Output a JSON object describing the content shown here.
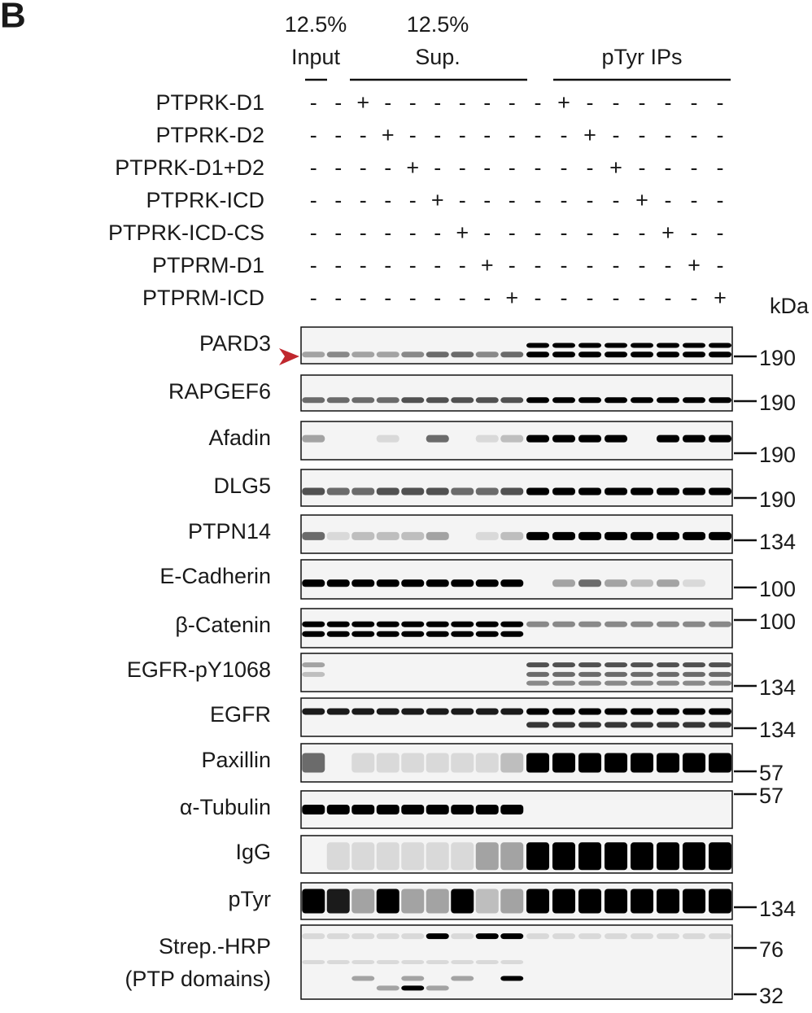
{
  "panel_label": "B",
  "column_groups": [
    {
      "lines": [
        "12.5%",
        "Input"
      ]
    },
    {
      "lines": [
        "12.5%",
        "Sup."
      ]
    },
    {
      "lines": [
        "pTyr IPs"
      ]
    }
  ],
  "conditions": [
    {
      "name": "PTPRK-D1",
      "signs": [
        "-",
        "-",
        "+",
        "-",
        "-",
        "-",
        "-",
        "-",
        "-",
        "-",
        "+",
        "-",
        "-",
        "-",
        "-",
        "-",
        "-"
      ]
    },
    {
      "name": "PTPRK-D2",
      "signs": [
        "-",
        "-",
        "-",
        "+",
        "-",
        "-",
        "-",
        "-",
        "-",
        "-",
        "-",
        "+",
        "-",
        "-",
        "-",
        "-",
        "-"
      ]
    },
    {
      "name": "PTPRK-D1+D2",
      "signs": [
        "-",
        "-",
        "-",
        "-",
        "+",
        "-",
        "-",
        "-",
        "-",
        "-",
        "-",
        "-",
        "+",
        "-",
        "-",
        "-",
        "-"
      ]
    },
    {
      "name": "PTPRK-ICD",
      "signs": [
        "-",
        "-",
        "-",
        "-",
        "-",
        "+",
        "-",
        "-",
        "-",
        "-",
        "-",
        "-",
        "-",
        "+",
        "-",
        "-",
        "-"
      ]
    },
    {
      "name": "PTPRK-ICD-CS",
      "signs": [
        "-",
        "-",
        "-",
        "-",
        "-",
        "-",
        "+",
        "-",
        "-",
        "-",
        "-",
        "-",
        "-",
        "-",
        "+",
        "-",
        "-"
      ]
    },
    {
      "name": "PTPRM-D1",
      "signs": [
        "-",
        "-",
        "-",
        "-",
        "-",
        "-",
        "-",
        "+",
        "-",
        "-",
        "-",
        "-",
        "-",
        "-",
        "-",
        "+",
        "-"
      ]
    },
    {
      "name": "PTPRM-ICD",
      "signs": [
        "-",
        "-",
        "-",
        "-",
        "-",
        "-",
        "-",
        "-",
        "+",
        "-",
        "-",
        "-",
        "-",
        "-",
        "-",
        "-",
        "+"
      ]
    }
  ],
  "unit_label": "kDa",
  "blots": [
    {
      "lines": [
        "PARD3"
      ],
      "markers": [
        190
      ]
    },
    {
      "lines": [
        "RAPGEF6"
      ],
      "markers": [
        190
      ]
    },
    {
      "lines": [
        "Afadin"
      ],
      "markers": [
        190
      ]
    },
    {
      "lines": [
        "DLG5"
      ],
      "markers": [
        190
      ]
    },
    {
      "lines": [
        "PTPN14"
      ],
      "markers": [
        134
      ]
    },
    {
      "lines": [
        "E-Cadherin"
      ],
      "markers": [
        100
      ]
    },
    {
      "lines": [
        "β-Catenin"
      ],
      "markers": [
        100
      ]
    },
    {
      "lines": [
        "EGFR-pY1068"
      ],
      "markers": [
        134
      ]
    },
    {
      "lines": [
        "EGFR"
      ],
      "markers": [
        134
      ]
    },
    {
      "lines": [
        "Paxillin"
      ],
      "markers": [
        57
      ]
    },
    {
      "lines": [
        "α-Tubulin"
      ],
      "markers": [
        57
      ]
    },
    {
      "lines": [
        "IgG"
      ],
      "markers": []
    },
    {
      "lines": [
        "pTyr"
      ],
      "markers": [
        134
      ]
    },
    {
      "lines": [
        "Strep.-HRP",
        "(PTP domains)"
      ],
      "markers": [
        76,
        32
      ]
    }
  ]
}
